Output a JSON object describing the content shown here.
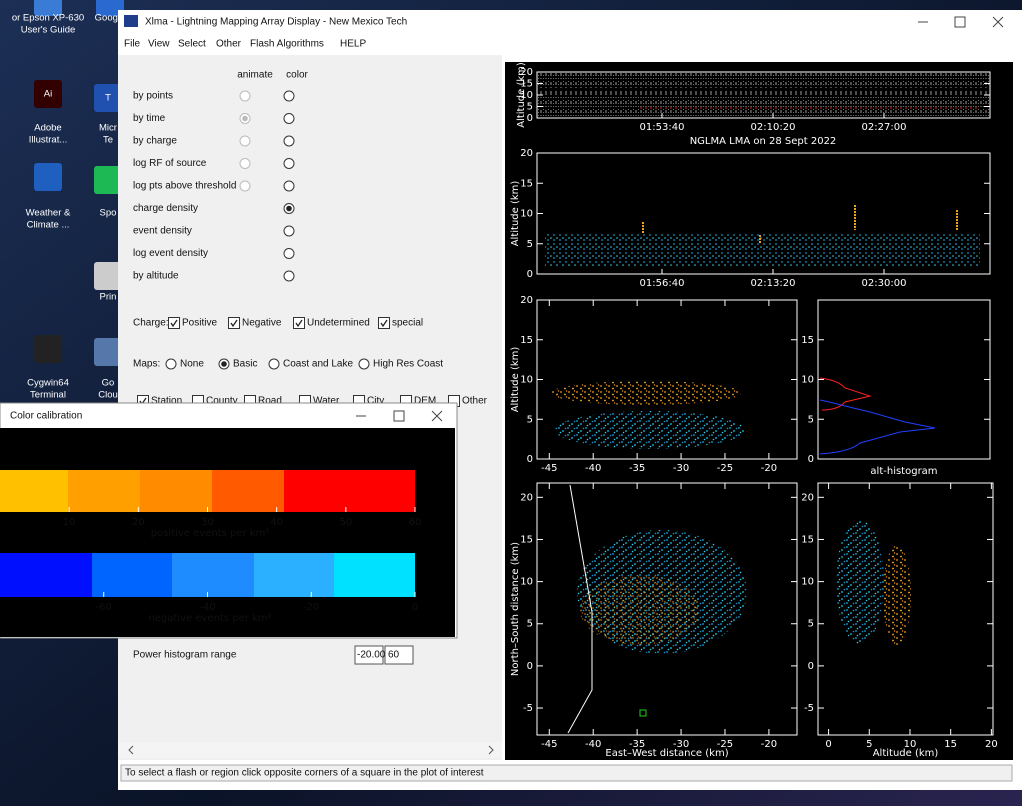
{
  "desktop": {
    "icons": [
      {
        "lines": [
          "or Epson XP-630",
          "User's Guide"
        ]
      },
      {
        "lines": [
          "Google"
        ]
      },
      {
        "glyph": "Ai",
        "lines": [
          "Adobe",
          "Illustrat..."
        ]
      },
      {
        "glyph": "T",
        "lines": [
          "Micr",
          "Te"
        ]
      },
      {
        "lines": [
          "Weather &",
          "Climate ..."
        ]
      },
      {
        "lines": [
          "Spo"
        ]
      },
      {
        "lines": [
          "Prin"
        ]
      },
      {
        "lines": [
          "Cygwin64",
          "Terminal"
        ]
      },
      {
        "lines": [
          "Go",
          "Clou"
        ]
      }
    ]
  },
  "window": {
    "title": "Xlma - Lightning Mapping Array Display - New Mexico Tech",
    "menu": [
      "File",
      "View",
      "Select",
      "Other",
      "Flash Algorithms",
      "HELP"
    ]
  },
  "color_options": {
    "headers": [
      "animate",
      "color"
    ],
    "rows": [
      {
        "label": "by points",
        "animate": false,
        "color": false
      },
      {
        "label": "by time",
        "animate": true,
        "color": false
      },
      {
        "label": "by charge",
        "animate": false,
        "color": false
      },
      {
        "label": "log RF of source",
        "animate": false,
        "color": false
      },
      {
        "label": "log pts above threshold",
        "animate": false,
        "color": false
      },
      {
        "label": "charge density",
        "animate": null,
        "color": true
      },
      {
        "label": "event density",
        "animate": null,
        "color": false
      },
      {
        "label": "log event density",
        "animate": null,
        "color": false
      },
      {
        "label": "by altitude",
        "animate": null,
        "color": false
      }
    ]
  },
  "charge": {
    "label": "Charge:",
    "options": [
      {
        "label": "Positive",
        "checked": true
      },
      {
        "label": "Negative",
        "checked": true
      },
      {
        "label": "Undetermined",
        "checked": true
      },
      {
        "label": "special",
        "checked": true
      }
    ]
  },
  "maps": {
    "label": "Maps:",
    "options": [
      {
        "label": "None",
        "selected": false
      },
      {
        "label": "Basic",
        "selected": true
      },
      {
        "label": "Coast and Lake",
        "selected": false
      },
      {
        "label": "High Res Coast",
        "selected": false
      }
    ]
  },
  "overlays": {
    "options": [
      {
        "label": "Station",
        "checked": true
      },
      {
        "label": "County",
        "checked": false
      },
      {
        "label": "Road",
        "checked": false
      },
      {
        "label": "Water",
        "checked": false
      },
      {
        "label": "City",
        "checked": false
      },
      {
        "label": "DEM",
        "checked": false
      },
      {
        "label": "Other",
        "checked": false
      }
    ]
  },
  "power_histogram": {
    "label": "Power histogram range",
    "min": "-20.00",
    "max": "60"
  },
  "status": "To select a flash or region click opposite corners of a square in the plot of interest",
  "color_calibration": {
    "title": "Color calibration",
    "scales": [
      {
        "label": "positive events per km²",
        "xlim": [
          0,
          60
        ],
        "xticks": [
          10,
          20,
          30,
          40,
          50,
          60
        ],
        "colors": [
          "#ffc000",
          "#ffa000",
          "#ff8c00",
          "#ff5a00",
          "#ff0000"
        ]
      },
      {
        "label": "negative events per km²",
        "xlim": [
          -80,
          0
        ],
        "xticks": [
          -60,
          -40,
          -20,
          0
        ],
        "colors": [
          "#0010ff",
          "#0064ff",
          "#1e8cff",
          "#2ab0ff",
          "#00e0ff"
        ]
      }
    ]
  },
  "plots_title": "NGLMA LMA on 28 Sept 2022",
  "plots": [
    {
      "ylabel": "Altitude (km)",
      "ylim": [
        0,
        20
      ],
      "yticks": [
        0,
        5,
        10,
        15,
        20
      ],
      "time_labels": [
        "01:53:40",
        "02:10:20",
        "02:27:00"
      ]
    },
    {
      "ylabel": "Altitude (km)",
      "ylim": [
        0,
        20
      ],
      "yticks": [
        0,
        5,
        10,
        15,
        20
      ],
      "time_labels": [
        "01:56:40",
        "02:13:20",
        "02:30:00"
      ]
    },
    {
      "ylabel": "Altitude (km)",
      "xlim": [
        -46.4,
        -16.8
      ],
      "xticks": [
        -45,
        -40,
        -35,
        -30,
        -25,
        -20
      ],
      "ylim": [
        0,
        20
      ],
      "yticks": [
        0,
        5,
        10,
        15,
        20
      ]
    },
    {
      "xlabel": "alt-histogram",
      "ylim": [
        0,
        20
      ],
      "yticks": [
        0,
        5,
        10,
        15
      ]
    },
    {
      "xlabel": "East–West distance (km)",
      "ylabel": "North–South distance (km)",
      "xlim": [
        -46.4,
        -16.8
      ],
      "xticks": [
        -45,
        -40,
        -35,
        -30,
        -25,
        -20
      ],
      "ylim": [
        -8.2,
        21.7
      ],
      "yticks": [
        -5,
        0,
        5,
        10,
        15,
        20
      ]
    },
    {
      "xlabel": "Altitude (km)",
      "xlim": [
        -1.3,
        20.2
      ],
      "xticks": [
        0,
        5,
        10,
        15,
        20
      ],
      "ylim": [
        -8.2,
        21.7
      ],
      "yticks": [
        -5,
        0,
        5,
        10,
        15,
        20
      ]
    }
  ]
}
